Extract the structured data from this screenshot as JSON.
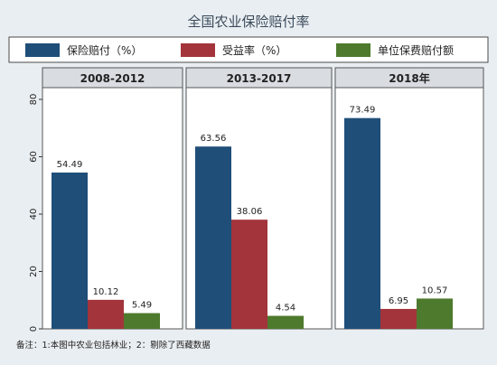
{
  "chart_data": {
    "type": "bar",
    "title": "全国农业保险赔付率",
    "categories": [
      "2008-2012",
      "2013-2017",
      "2018年"
    ],
    "series": [
      {
        "name": "保险赔付（%）",
        "values": [
          54.49,
          63.56,
          73.49
        ]
      },
      {
        "name": "受益率（%）",
        "values": [
          10.12,
          38.06,
          6.95
        ]
      },
      {
        "name": "单位保费赔付额",
        "values": [
          5.49,
          4.54,
          10.57
        ]
      }
    ],
    "data_labels": [
      [
        "54.49",
        "10.12",
        "5.49"
      ],
      [
        "63.56",
        "38.06",
        "4.54"
      ],
      [
        "73.49",
        "6.95",
        "10.57"
      ]
    ],
    "ylim": [
      0,
      80
    ],
    "yticks": [
      "0",
      "20",
      "40",
      "60",
      "80"
    ],
    "legend_position": "top",
    "grid": false,
    "colors": {
      "series1": "#1f4e79",
      "series2": "#a3343b",
      "series3": "#4e7a2d",
      "background": "#e9eef2",
      "header": "#d9dde2"
    }
  },
  "footnote": "备注：1:本图中农业包括林业；2：剔除了西藏数据"
}
